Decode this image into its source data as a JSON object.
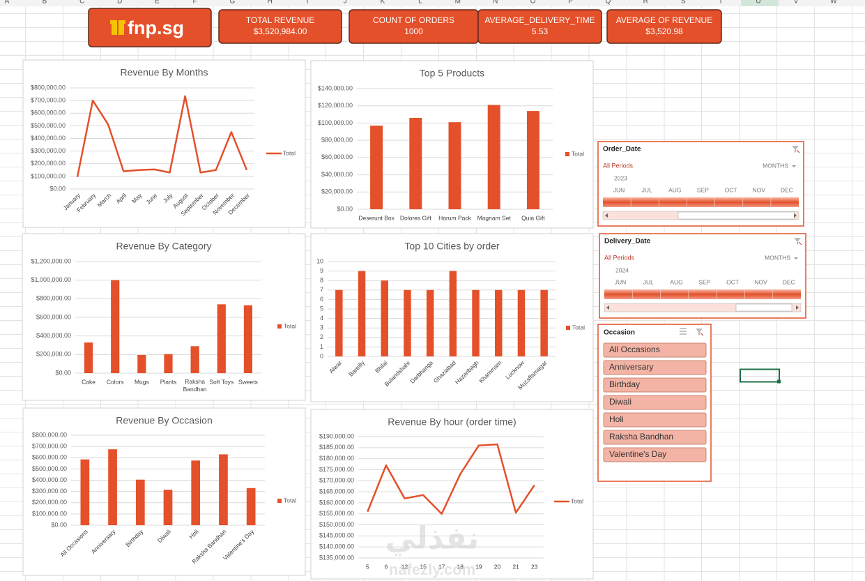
{
  "sheet": {
    "columns": [
      "A",
      "B",
      "C",
      "D",
      "E",
      "F",
      "G",
      "H",
      "I",
      "J",
      "K",
      "L",
      "M",
      "N",
      "O",
      "P",
      "Q",
      "R",
      "S",
      "T",
      "U",
      "V",
      "W"
    ]
  },
  "logo": "fnp.sg",
  "kpis": [
    {
      "label": "TOTAL REVENUE",
      "value": "$3,520,984.00"
    },
    {
      "label": "COUNT OF ORDERS",
      "value": "1000"
    },
    {
      "label": "AVERAGE_DELIVERY_TIME",
      "value": "5.53"
    },
    {
      "label": "AVERAGE OF REVENUE",
      "value": "$3,520.98"
    }
  ],
  "chart_data": [
    {
      "type": "line",
      "title": "Revenue By Months",
      "categories": [
        "January",
        "February",
        "March",
        "April",
        "May",
        "June",
        "July",
        "August",
        "September",
        "October",
        "November",
        "December"
      ],
      "series": [
        {
          "name": "Total",
          "color": "#e4502a",
          "values": [
            95000,
            700000,
            510000,
            140000,
            150000,
            155000,
            130000,
            735000,
            130000,
            150000,
            450000,
            150000
          ]
        }
      ],
      "ylim": [
        0,
        800000
      ],
      "yticks": [
        {
          "value": 0,
          "label": "$0.00"
        },
        {
          "value": 100000,
          "label": "$100,000.00"
        },
        {
          "value": 200000,
          "label": "$200,000.00"
        },
        {
          "value": 300000,
          "label": "$300,000.00"
        },
        {
          "value": 400000,
          "label": "$400,000.00"
        },
        {
          "value": 500000,
          "label": "$500,000.00"
        },
        {
          "value": 600000,
          "label": "$600,000.00"
        },
        {
          "value": 700000,
          "label": "$700,000.00"
        },
        {
          "value": 800000,
          "label": "$800,000.00"
        }
      ],
      "grid": true
    },
    {
      "type": "bar",
      "title": "Top 5 Products",
      "categories": [
        "Deserunt Box",
        "Dolores Gift",
        "Harum Pack",
        "Magnam Set",
        "Quia Gift"
      ],
      "series": [
        {
          "name": "Total",
          "color": "#e4502a",
          "values": [
            97000,
            106000,
            101000,
            121000,
            114000
          ]
        }
      ],
      "ylim": [
        0,
        140000
      ],
      "yticks": [
        {
          "value": 0,
          "label": "$0.00"
        },
        {
          "value": 20000,
          "label": "$20,000.00"
        },
        {
          "value": 40000,
          "label": "$40,000.00"
        },
        {
          "value": 60000,
          "label": "$60,000.00"
        },
        {
          "value": 80000,
          "label": "$80,000.00"
        },
        {
          "value": 100000,
          "label": "$100,000.00"
        },
        {
          "value": 120000,
          "label": "$120,000.00"
        },
        {
          "value": 140000,
          "label": "$140,000.00"
        }
      ],
      "grid": true
    },
    {
      "type": "bar",
      "title": "Revenue By Category",
      "categories": [
        "Cake",
        "Colors",
        "Mugs",
        "Plants",
        "Raksha Bandhan",
        "Soft Toys",
        "Sweets"
      ],
      "series": [
        {
          "name": "Total",
          "color": "#e4502a",
          "values": [
            330000,
            1000000,
            195000,
            205000,
            290000,
            740000,
            730000
          ]
        }
      ],
      "ylim": [
        0,
        1200000
      ],
      "yticks": [
        {
          "value": 0,
          "label": "$0.00"
        },
        {
          "value": 200000,
          "label": "$200,000.00"
        },
        {
          "value": 400000,
          "label": "$400,000.00"
        },
        {
          "value": 600000,
          "label": "$600,000.00"
        },
        {
          "value": 800000,
          "label": "$800,000.00"
        },
        {
          "value": 1000000,
          "label": "$1,000,000.00"
        },
        {
          "value": 1200000,
          "label": "$1,200,000.00"
        }
      ],
      "grid": true
    },
    {
      "type": "bar",
      "title": "Top 10 Cities by order",
      "categories": [
        "Alwar",
        "Bareilly",
        "Bhilai",
        "Bulandshahr",
        "Darbhanga",
        "Ghaziabad",
        "Hazaribagh",
        "Khammam",
        "Lucknow",
        "Muzaffarnagar"
      ],
      "series": [
        {
          "name": "Total",
          "color": "#e4502a",
          "values": [
            7,
            9,
            8,
            7,
            7,
            9,
            7,
            7,
            7,
            7
          ]
        }
      ],
      "ylim": [
        0,
        10
      ],
      "yticks": [
        0,
        1,
        2,
        3,
        4,
        5,
        6,
        7,
        8,
        9,
        10
      ],
      "grid": true
    },
    {
      "type": "bar",
      "title": "Revenue By Occasion",
      "categories": [
        "All Occasions",
        "Anniversary",
        "Birthday",
        "Diwali",
        "Holi",
        "Raksha Bandhan",
        "Valentine's Day"
      ],
      "series": [
        {
          "name": "Total",
          "color": "#e4502a",
          "values": [
            585000,
            675000,
            405000,
            315000,
            575000,
            630000,
            330000
          ]
        }
      ],
      "ylim": [
        0,
        800000
      ],
      "yticks": [
        {
          "value": 0,
          "label": "$0.00"
        },
        {
          "value": 100000,
          "label": "$100,000.00"
        },
        {
          "value": 200000,
          "label": "$200,000.00"
        },
        {
          "value": 300000,
          "label": "$300,000.00"
        },
        {
          "value": 400000,
          "label": "$400,000.00"
        },
        {
          "value": 500000,
          "label": "$500,000.00"
        },
        {
          "value": 600000,
          "label": "$600,000.00"
        },
        {
          "value": 700000,
          "label": "$700,000.00"
        },
        {
          "value": 800000,
          "label": "$800,000.00"
        }
      ],
      "grid": true
    },
    {
      "type": "line",
      "title": "Revenue By hour (order time)",
      "categories": [
        "5",
        "6",
        "12",
        "15",
        "17",
        "18",
        "19",
        "20",
        "21",
        "23"
      ],
      "series": [
        {
          "name": "Total",
          "color": "#e4502a",
          "values": [
            156000,
            177000,
            162000,
            163500,
            155000,
            173000,
            186000,
            186500,
            155500,
            168000
          ]
        }
      ],
      "ylim": [
        135000,
        190000
      ],
      "yticks": [
        {
          "value": 135000,
          "label": "$135,000.00"
        },
        {
          "value": 140000,
          "label": "$140,000.00"
        },
        {
          "value": 145000,
          "label": "$145,000.00"
        },
        {
          "value": 150000,
          "label": "$150,000.00"
        },
        {
          "value": 155000,
          "label": "$155,000.00"
        },
        {
          "value": 160000,
          "label": "$160,000.00"
        },
        {
          "value": 165000,
          "label": "$165,000.00"
        },
        {
          "value": 170000,
          "label": "$170,000.00"
        },
        {
          "value": 175000,
          "label": "$175,000.00"
        },
        {
          "value": 180000,
          "label": "$180,000.00"
        },
        {
          "value": 185000,
          "label": "$185,000.00"
        },
        {
          "value": 190000,
          "label": "$190,000.00"
        }
      ],
      "grid": true
    }
  ],
  "slicers": [
    {
      "title": "Order_Date",
      "all": "All Periods",
      "level": "MONTHS",
      "year": "2023",
      "months": [
        "JUN",
        "JUL",
        "AUG",
        "SEP",
        "OCT",
        "NOV",
        "DEC"
      ]
    },
    {
      "title": "Delivery_Date",
      "all": "All Periods",
      "level": "MONTHS",
      "year": "2024",
      "months": [
        "JUN",
        "JUL",
        "AUG",
        "SEP",
        "OCT",
        "NOV",
        "DEC"
      ]
    },
    {
      "title": "Occasion",
      "items": [
        "All Occasions",
        "Anniversary",
        "Birthday",
        "Diwali",
        "Holi",
        "Raksha Bandhan",
        "Valentine's Day"
      ]
    }
  ],
  "watermark": {
    "arabic": "نفذلي",
    "latin": "nafezly.com"
  }
}
